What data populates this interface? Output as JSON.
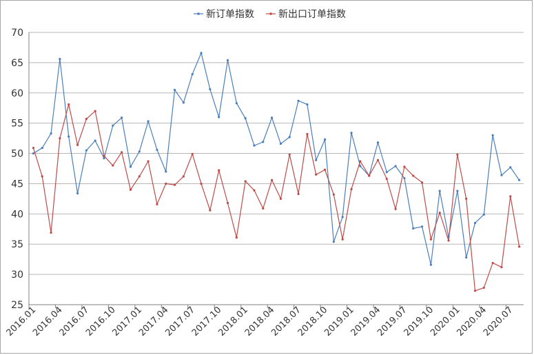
{
  "chart_data": {
    "type": "line",
    "title": "",
    "xlabel": "",
    "ylabel": "",
    "ylim": [
      25,
      70
    ],
    "y_ticks": [
      25,
      30,
      35,
      40,
      45,
      50,
      55,
      60,
      65,
      70
    ],
    "grid": true,
    "legend_position": "top",
    "x_tick_labels": [
      "2016.01",
      "2016.04",
      "2016.07",
      "2016.10",
      "2017.01",
      "2017.04",
      "2017.07",
      "2017.10",
      "2018.01",
      "2018.04",
      "2018.07",
      "2018.10",
      "2019.01",
      "2019.04",
      "2019.07",
      "2019.10",
      "2020.01",
      "2020.04",
      "2020.07"
    ],
    "x": [
      "2016.01",
      "2016.02",
      "2016.03",
      "2016.04",
      "2016.05",
      "2016.06",
      "2016.07",
      "2016.08",
      "2016.09",
      "2016.10",
      "2016.11",
      "2016.12",
      "2017.01",
      "2017.02",
      "2017.03",
      "2017.04",
      "2017.05",
      "2017.06",
      "2017.07",
      "2017.08",
      "2017.09",
      "2017.10",
      "2017.11",
      "2017.12",
      "2018.01",
      "2018.02",
      "2018.03",
      "2018.04",
      "2018.05",
      "2018.06",
      "2018.07",
      "2018.08",
      "2018.09",
      "2018.10",
      "2018.11",
      "2018.12",
      "2019.01",
      "2019.02",
      "2019.03",
      "2019.04",
      "2019.05",
      "2019.06",
      "2019.07",
      "2019.08",
      "2019.09",
      "2019.10",
      "2019.11",
      "2019.12",
      "2020.01",
      "2020.02",
      "2020.03",
      "2020.04",
      "2020.05",
      "2020.06",
      "2020.07",
      "2020.08"
    ],
    "series": [
      {
        "name": "新订单指数",
        "color": "#4a7ebb",
        "values": [
          50.0,
          50.9,
          53.3,
          65.6,
          52.8,
          43.4,
          50.5,
          52.1,
          49.2,
          54.6,
          55.9,
          47.8,
          50.3,
          55.3,
          50.6,
          47.0,
          60.5,
          58.4,
          63.1,
          66.6,
          60.6,
          56.0,
          65.4,
          58.3,
          55.8,
          51.3,
          51.9,
          55.9,
          51.6,
          52.7,
          58.7,
          58.1,
          48.9,
          52.3,
          35.4,
          39.5,
          53.4,
          47.9,
          46.3,
          51.8,
          46.9,
          47.9,
          45.9,
          37.6,
          37.9,
          31.6,
          43.8,
          36.2,
          43.8,
          32.8,
          38.5,
          39.9,
          53.0,
          46.4,
          47.7,
          45.6
        ]
      },
      {
        "name": "新出口订单指数",
        "color": "#be4b48",
        "values": [
          50.9,
          46.2,
          36.9,
          52.5,
          58.1,
          51.4,
          55.7,
          57.0,
          49.6,
          48.0,
          50.2,
          44.0,
          46.2,
          48.7,
          41.6,
          45.0,
          44.8,
          46.2,
          49.9,
          45.0,
          40.6,
          47.2,
          41.8,
          36.1,
          45.4,
          43.9,
          40.9,
          45.6,
          42.5,
          49.8,
          43.3,
          53.2,
          46.5,
          47.3,
          43.2,
          35.8,
          44.1,
          48.7,
          46.3,
          48.9,
          45.8,
          40.8,
          47.8,
          46.3,
          45.2,
          35.8,
          40.2,
          35.6,
          49.8,
          42.5,
          27.3,
          27.8,
          31.9,
          31.2,
          42.9,
          34.6
        ]
      }
    ]
  }
}
